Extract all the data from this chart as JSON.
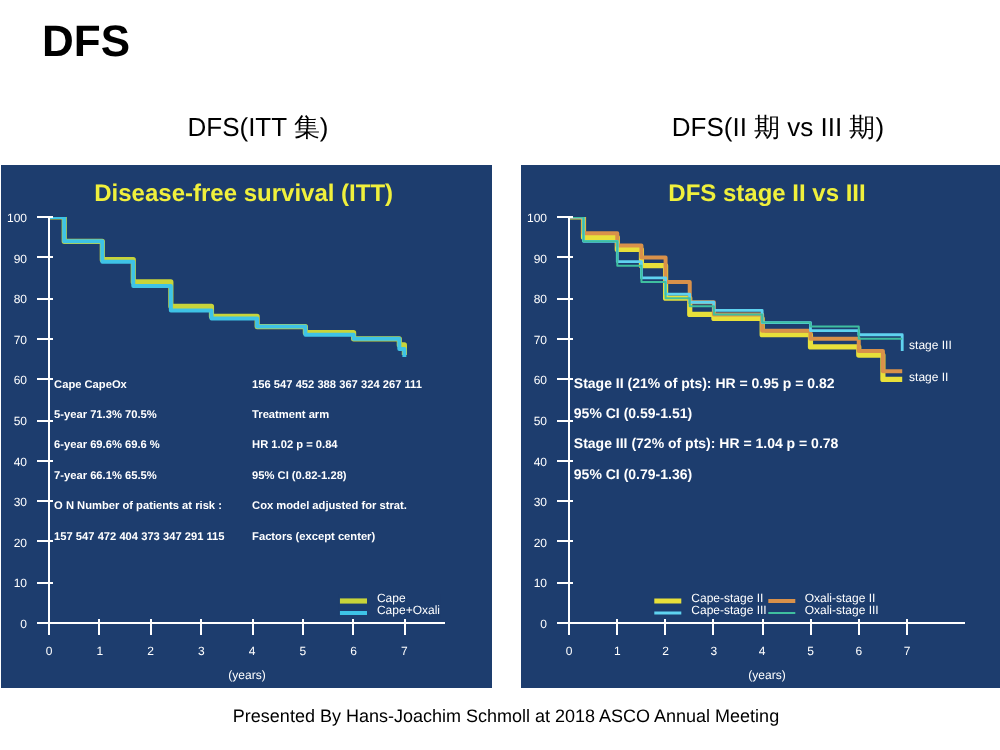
{
  "chart_data": [
    {
      "type": "step",
      "title": "DFS(ITT 集)",
      "subtitle": "Disease-free survival  (ITT)",
      "xlabel": "(years)",
      "x": [
        0,
        0.18,
        0.3,
        1.05,
        1.66,
        2.4,
        3.2,
        4.1,
        5.05,
        6.0,
        6.9,
        7.0
      ],
      "series": [
        {
          "name": "Cape",
          "color": "#c8d43a",
          "values": [
            100,
            100,
            94,
            89.5,
            84,
            78,
            75.5,
            73,
            71.5,
            70,
            68.5,
            66
          ]
        },
        {
          "name": "Cape+Oxali",
          "color": "#3ec3e6",
          "values": [
            100,
            100,
            94,
            89,
            83,
            77,
            75,
            73,
            71,
            70,
            67.5,
            65.5
          ]
        }
      ],
      "xlim": [
        0,
        7.8
      ],
      "ylim": [
        0,
        100
      ],
      "xticks": [
        0,
        1,
        2,
        3,
        4,
        5,
        6,
        7
      ],
      "yticks": [
        0,
        10,
        20,
        30,
        40,
        50,
        60,
        70,
        80,
        90,
        100
      ],
      "legend": "bottom right",
      "annotations": [
        "DFS",
        "Cape    CapeOx",
        "5-year   71.3%   70.5%",
        "6-year   69.6%   69.6 %",
        "7-year   66.1%   65.5%",
        "O  N   Number of patients at risk :",
        "157 547  472  404  373  347  291  115",
        "156 547  452  388  367  324  267  111",
        "Treatment arm",
        "HR 1.02    p = 0.84",
        "95% CI (0.82-1.28)",
        "Cox model adjusted for strat.",
        "Factors (except center)"
      ]
    },
    {
      "type": "step",
      "title": "DFS(II 期   vs III 期)",
      "subtitle": "DFS stage II vs III",
      "xlabel": "(years)",
      "x": [
        0,
        0.3,
        1,
        1.5,
        2,
        2.5,
        3,
        4,
        5,
        6,
        6.5,
        6.9
      ],
      "series": [
        {
          "name": "Cape-stage II",
          "color": "#e8e03a",
          "values": [
            100,
            95,
            92,
            88,
            80,
            76,
            75,
            71,
            68,
            66,
            60,
            60
          ]
        },
        {
          "name": "Oxali-stage II",
          "color": "#d9914a",
          "values": [
            100,
            96,
            93,
            90,
            84,
            79,
            76,
            72,
            70,
            67,
            62,
            62
          ]
        },
        {
          "name": "Cape-stage III",
          "color": "#5fd3f0",
          "values": [
            100,
            94,
            89,
            85,
            81,
            79,
            77,
            74,
            72,
            71,
            71,
            67
          ]
        },
        {
          "name": "Oxali-stage III",
          "color": "#3fbf9f",
          "values": [
            100,
            94,
            88,
            84,
            80,
            78,
            76,
            74,
            73,
            70,
            70,
            70
          ]
        }
      ],
      "xlim": [
        0,
        8.2
      ],
      "ylim": [
        0,
        100
      ],
      "xticks": [
        0,
        1,
        2,
        3,
        4,
        5,
        6,
        7
      ],
      "yticks": [
        0,
        10,
        20,
        30,
        40,
        50,
        60,
        70,
        80,
        90,
        100
      ],
      "legend": "bottom",
      "annotations": [
        {
          "text": "stage III",
          "x": 7,
          "y": 68
        },
        {
          "text": "stage II",
          "x": 7,
          "y": 60
        },
        "Stage II (21% of pts):  HR = 0.95    p = 0.82",
        "95% CI (0.59-1.51)",
        "Stage III (72% of pts): HR = 1.04    p = 0.78",
        "95% CI (0.79-1.36)",
        "Presented By Hans-Joachim Schmoll at 2018 ASCO Annual Meeting"
      ]
    }
  ]
}
